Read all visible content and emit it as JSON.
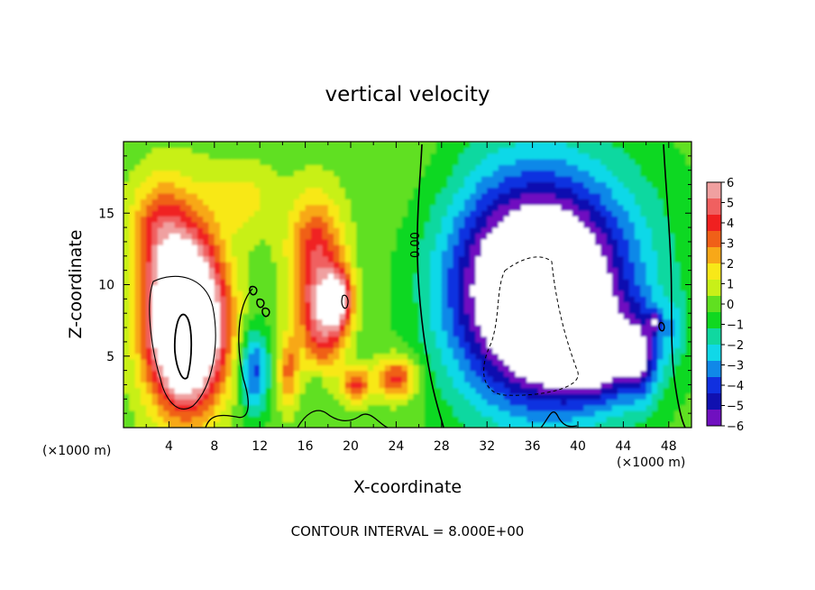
{
  "chart_data": {
    "type": "heatmap",
    "title": "vertical velocity",
    "xlabel": "X-coordinate",
    "ylabel": "Z-coordinate",
    "x_unit": "(×1000 m)",
    "y_unit": "(×1000 m)",
    "xlim": [
      0,
      50
    ],
    "ylim": [
      0,
      20
    ],
    "x_ticks": [
      4,
      8,
      12,
      16,
      20,
      24,
      28,
      32,
      36,
      40,
      44,
      48
    ],
    "y_ticks": [
      5,
      10,
      15
    ],
    "colorbar": {
      "ticks": [
        "6",
        "5",
        "4",
        "3",
        "2",
        "1",
        "0",
        "−1",
        "−2",
        "−3",
        "−4",
        "−5",
        "−6"
      ],
      "range": [
        -6,
        6
      ],
      "colors": [
        "#f0a0a0",
        "#f06060",
        "#f02020",
        "#f06018",
        "#f8a818",
        "#f8e818",
        "#c8f018",
        "#60e020",
        "#10d820",
        "#10d8a0",
        "#10d8e8",
        "#1088e8",
        "#1030e0",
        "#1010b0",
        "#7010c0"
      ]
    },
    "contour_labels": [
      "0.00"
    ],
    "footnote": "CONTOUR INTERVAL = 8.000E+00",
    "features": [
      {
        "x": 5.5,
        "z": 7.0,
        "rx": 3.3,
        "rz": 5.0,
        "w": 9
      },
      {
        "x": 5.5,
        "z": 8.5,
        "rx": 3.0,
        "rz": 6.5,
        "w": 5
      },
      {
        "x": 3.0,
        "z": 14.0,
        "rx": 2.5,
        "rz": 3.5,
        "w": 3
      },
      {
        "x": 10.5,
        "z": 16.0,
        "rx": 3.0,
        "rz": 2.5,
        "w": 1.5
      },
      {
        "x": 11.5,
        "z": 4.0,
        "rx": 1.3,
        "rz": 3.0,
        "w": -4
      },
      {
        "x": 17.5,
        "z": 7.5,
        "rx": 2.0,
        "rz": 3.5,
        "w": 5
      },
      {
        "x": 17.0,
        "z": 12.5,
        "rx": 2.5,
        "rz": 4.0,
        "w": 4
      },
      {
        "x": 19.0,
        "z": 9.0,
        "rx": 1.2,
        "rz": 2.0,
        "w": 5
      },
      {
        "x": 14.5,
        "z": 4.0,
        "rx": 0.9,
        "rz": 2.5,
        "w": 3
      },
      {
        "x": 20.5,
        "z": 3.0,
        "rx": 1.2,
        "rz": 1.2,
        "w": 4
      },
      {
        "x": 24.0,
        "z": 3.5,
        "rx": 1.8,
        "rz": 1.5,
        "w": 4
      },
      {
        "x": 17.0,
        "z": 3.0,
        "rx": 0.8,
        "rz": 1.5,
        "w": -1
      },
      {
        "x": 37.0,
        "z": 9.0,
        "rx": 6.5,
        "rz": 7.0,
        "w": -7
      },
      {
        "x": 36.0,
        "z": 10.0,
        "rx": 9.5,
        "rz": 8.5,
        "w": -3
      },
      {
        "x": 36.0,
        "z": 12.0,
        "rx": 12.0,
        "rz": 9.0,
        "w": -1.5
      },
      {
        "x": 42.0,
        "z": 5.0,
        "rx": 4.0,
        "rz": 3.0,
        "w": -4
      },
      {
        "x": 45.5,
        "z": 5.0,
        "rx": 1.5,
        "rz": 3.0,
        "w": -3
      },
      {
        "x": 46.8,
        "z": 7.5,
        "rx": 0.6,
        "rz": 0.8,
        "w": -3
      },
      {
        "x": 48.5,
        "z": 7.0,
        "rx": 1.0,
        "rz": 2.0,
        "w": -1.5
      },
      {
        "x": 25.0,
        "z": 12.0,
        "rx": 4.0,
        "rz": 10.0,
        "w": 0.8
      },
      {
        "x": 28.5,
        "z": 17.0,
        "rx": 3.0,
        "rz": 4.0,
        "w": 0.3
      }
    ]
  }
}
